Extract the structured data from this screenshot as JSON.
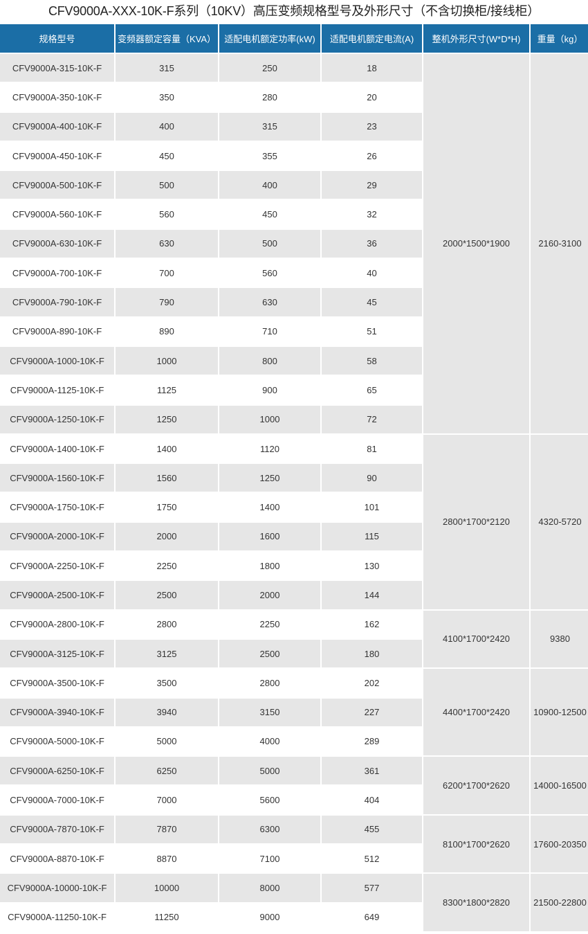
{
  "title": "CFV9000A-XXX-10K-F系列（10KV）高压变频规格型号及外形尺寸（不含切换柜/接线柜）",
  "colors": {
    "header_bg": "#1b6ea6",
    "stripe": "#e6e6e6"
  },
  "headers": [
    "规格型号",
    "变频器额定容量（KVA）",
    "适配电机额定功率(kW)",
    "适配电机额定电流(A)",
    "整机外形尺寸(W*D*H)",
    "重量（kg）"
  ],
  "rows": [
    [
      "CFV9000A-315-10K-F",
      "315",
      "250",
      "18"
    ],
    [
      "CFV9000A-350-10K-F",
      "350",
      "280",
      "20"
    ],
    [
      "CFV9000A-400-10K-F",
      "400",
      "315",
      "23"
    ],
    [
      "CFV9000A-450-10K-F",
      "450",
      "355",
      "26"
    ],
    [
      "CFV9000A-500-10K-F",
      "500",
      "400",
      "29"
    ],
    [
      "CFV9000A-560-10K-F",
      "560",
      "450",
      "32"
    ],
    [
      "CFV9000A-630-10K-F",
      "630",
      "500",
      "36"
    ],
    [
      "CFV9000A-700-10K-F",
      "700",
      "560",
      "40"
    ],
    [
      "CFV9000A-790-10K-F",
      "790",
      "630",
      "45"
    ],
    [
      "CFV9000A-890-10K-F",
      "890",
      "710",
      "51"
    ],
    [
      "CFV9000A-1000-10K-F",
      "1000",
      "800",
      "58"
    ],
    [
      "CFV9000A-1125-10K-F",
      "1125",
      "900",
      "65"
    ],
    [
      "CFV9000A-1250-10K-F",
      "1250",
      "1000",
      "72"
    ],
    [
      "CFV9000A-1400-10K-F",
      "1400",
      "1120",
      "81"
    ],
    [
      "CFV9000A-1560-10K-F",
      "1560",
      "1250",
      "90"
    ],
    [
      "CFV9000A-1750-10K-F",
      "1750",
      "1400",
      "101"
    ],
    [
      "CFV9000A-2000-10K-F",
      "2000",
      "1600",
      "115"
    ],
    [
      "CFV9000A-2250-10K-F",
      "2250",
      "1800",
      "130"
    ],
    [
      "CFV9000A-2500-10K-F",
      "2500",
      "2000",
      "144"
    ],
    [
      "CFV9000A-2800-10K-F",
      "2800",
      "2250",
      "162"
    ],
    [
      "CFV9000A-3125-10K-F",
      "3125",
      "2500",
      "180"
    ],
    [
      "CFV9000A-3500-10K-F",
      "3500",
      "2800",
      "202"
    ],
    [
      "CFV9000A-3940-10K-F",
      "3940",
      "3150",
      "227"
    ],
    [
      "CFV9000A-5000-10K-F",
      "5000",
      "4000",
      "289"
    ],
    [
      "CFV9000A-6250-10K-F",
      "6250",
      "5000",
      "361"
    ],
    [
      "CFV9000A-7000-10K-F",
      "7000",
      "5600",
      "404"
    ],
    [
      "CFV9000A-7870-10K-F",
      "7870",
      "6300",
      "455"
    ],
    [
      "CFV9000A-8870-10K-F",
      "8870",
      "7100",
      "512"
    ],
    [
      "CFV9000A-10000-10K-F",
      "10000",
      "8000",
      "577"
    ],
    [
      "CFV9000A-11250-10K-F",
      "11250",
      "9000",
      "649"
    ]
  ],
  "groups": [
    {
      "span": 13,
      "size": "2000*1500*1900",
      "weight": "2160-3100"
    },
    {
      "span": 6,
      "size": "2800*1700*2120",
      "weight": "4320-5720"
    },
    {
      "span": 2,
      "size": "4100*1700*2420",
      "weight": "9380"
    },
    {
      "span": 3,
      "size": "4400*1700*2420",
      "weight": "10900-12500"
    },
    {
      "span": 2,
      "size": "6200*1700*2620",
      "weight": "14000-16500"
    },
    {
      "span": 2,
      "size": "8100*1700*2620",
      "weight": "17600-20350"
    },
    {
      "span": 2,
      "size": "8300*1800*2820",
      "weight": "21500-22800"
    }
  ]
}
